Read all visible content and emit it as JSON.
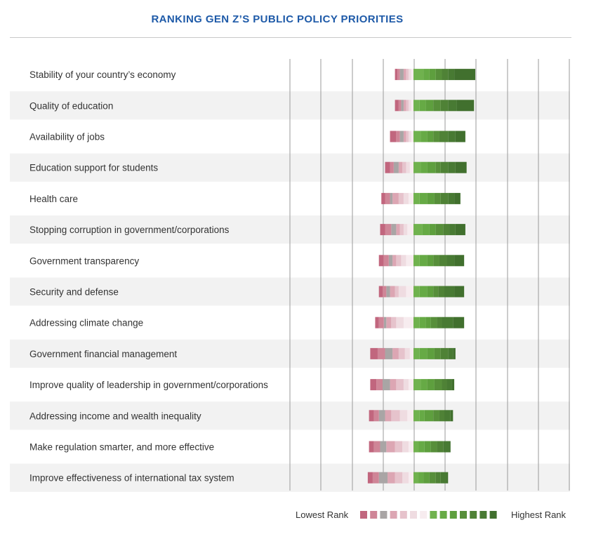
{
  "title": "RANKING GEN Z’S PUBLIC POLICY PRIORITIES",
  "legend": {
    "low_label": "Lowest Rank",
    "high_label": "Highest Rank",
    "colors": [
      "#c1667e",
      "#cf8597",
      "#a9a5a5",
      "#dca6b3",
      "#e6c3cc",
      "#efdce1",
      "#f7ecef",
      "#70b24e",
      "#66aa45",
      "#5e9f3e",
      "#578f3a",
      "#4f8236",
      "#487a33",
      "#41702e"
    ]
  },
  "chart_data": {
    "type": "bar",
    "subtype": "diverging stacked (rank distribution)",
    "title": "RANKING GEN Z’S PUBLIC POLICY PRIORITIES",
    "units": "approx. % of respondents assigning each rank",
    "rank_order": "first 7 values = lowest-rank segments (left of center), last 7 values = highest-rank segments (right of center)",
    "categories": [
      "Stability of your country’s economy",
      "Quality of education",
      "Availability of jobs",
      "Education support for students",
      "Health care",
      "Stopping corruption in government/corporations",
      "Government transparency",
      "Security and defense",
      "Addressing climate change",
      "Government financial management",
      "Improve quality of leadership in government/corporations",
      "Addressing income and wealth inequality",
      "Make regulation smarter, and more effective",
      "Improve effectiveness of international tax system"
    ],
    "segments": [
      [
        2,
        2,
        3,
        2,
        2,
        2,
        2,
        8,
        5,
        5,
        5,
        5,
        5,
        17
      ],
      [
        3,
        2,
        2,
        2,
        2,
        2,
        2,
        5,
        5,
        6,
        6,
        6,
        7,
        14
      ],
      [
        5,
        3,
        3,
        2,
        2,
        2,
        2,
        6,
        5,
        5,
        5,
        7,
        6,
        8
      ],
      [
        4,
        3,
        4,
        3,
        3,
        3,
        3,
        6,
        5,
        7,
        4,
        6,
        6,
        9
      ],
      [
        3,
        4,
        2,
        5,
        4,
        4,
        4,
        5,
        6,
        6,
        5,
        6,
        5,
        5
      ],
      [
        4,
        5,
        4,
        3,
        3,
        3,
        5,
        7,
        6,
        5,
        6,
        5,
        5,
        8
      ],
      [
        4,
        4,
        3,
        3,
        4,
        4,
        6,
        5,
        6,
        5,
        5,
        6,
        6,
        8
      ],
      [
        3,
        3,
        3,
        4,
        3,
        6,
        6,
        5,
        6,
        5,
        4,
        5,
        8,
        8
      ],
      [
        3,
        4,
        2,
        4,
        4,
        6,
        8,
        5,
        5,
        4,
        5,
        4,
        9,
        9
      ],
      [
        6,
        6,
        6,
        5,
        5,
        4,
        3,
        5,
        6,
        6,
        5,
        6,
        4,
        2
      ],
      [
        5,
        5,
        6,
        5,
        6,
        4,
        4,
        6,
        5,
        6,
        6,
        4,
        4,
        2
      ],
      [
        4,
        4,
        5,
        5,
        7,
        6,
        5,
        5,
        4,
        7,
        5,
        4,
        5,
        2
      ],
      [
        4,
        5,
        5,
        7,
        6,
        5,
        4,
        4,
        5,
        5,
        5,
        5,
        5,
        1
      ],
      [
        4,
        5,
        7,
        6,
        6,
        5,
        4,
        4,
        4,
        5,
        5,
        4,
        5,
        1
      ]
    ],
    "value_axis": [
      -45,
      50
    ],
    "grid": true,
    "legend_position": "bottom-right"
  }
}
